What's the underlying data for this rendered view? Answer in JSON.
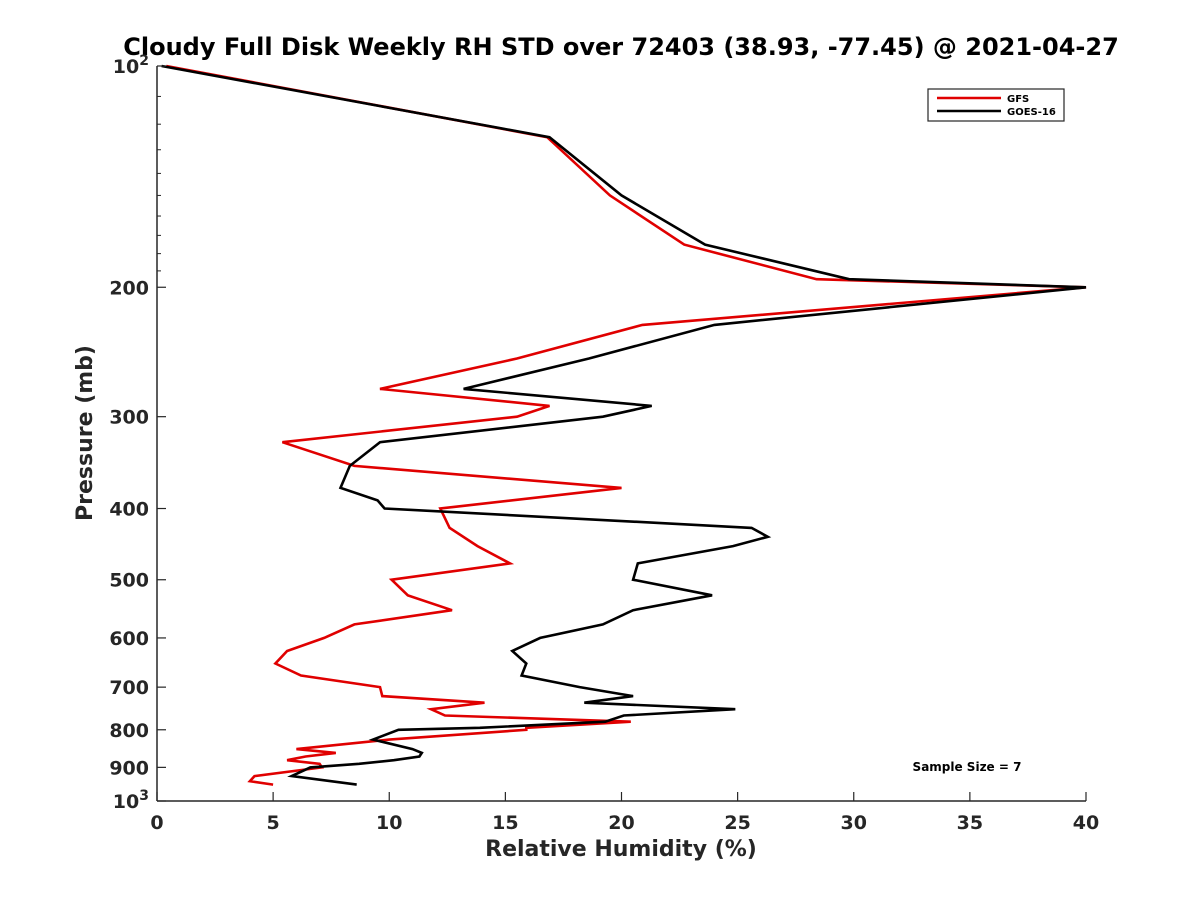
{
  "chart_data": {
    "type": "line",
    "title": "Cloudy Full Disk Weekly RH STD over 72403 (38.93, -77.45) @ 2021-04-27",
    "xlabel": "Relative Humidity (%)",
    "ylabel": "Pressure (mb)",
    "xlim": [
      0,
      40
    ],
    "ylim": [
      1000,
      100
    ],
    "yscale": "log",
    "y_reversed": true,
    "grid": false,
    "legend_position": "top-right",
    "x_ticks": [
      "0",
      "5",
      "10",
      "15",
      "20",
      "25",
      "30",
      "35",
      "40"
    ],
    "y_ticks": [
      {
        "value": 100,
        "label": "10",
        "sup": "2"
      },
      {
        "value": 200,
        "label": "200",
        "sup": ""
      },
      {
        "value": 300,
        "label": "300",
        "sup": ""
      },
      {
        "value": 400,
        "label": "400",
        "sup": ""
      },
      {
        "value": 500,
        "label": "500",
        "sup": ""
      },
      {
        "value": 600,
        "label": "600",
        "sup": ""
      },
      {
        "value": 700,
        "label": "700",
        "sup": ""
      },
      {
        "value": 800,
        "label": "800",
        "sup": ""
      },
      {
        "value": 900,
        "label": "900",
        "sup": ""
      },
      {
        "value": 1000,
        "label": "10",
        "sup": "3"
      }
    ],
    "series": [
      {
        "name": "GFS",
        "color": "#e00000",
        "points": [
          [
            0.4,
            100
          ],
          [
            16.8,
            125
          ],
          [
            19.5,
            150
          ],
          [
            22.7,
            175
          ],
          [
            28.4,
            195
          ],
          [
            40,
            200
          ],
          [
            20.9,
            225
          ],
          [
            15.5,
            250
          ],
          [
            9.6,
            275
          ],
          [
            16.9,
            290
          ],
          [
            15.5,
            300
          ],
          [
            5.4,
            325
          ],
          [
            8.5,
            350
          ],
          [
            20.0,
            375
          ],
          [
            12.2,
            400
          ],
          [
            12.6,
            425
          ],
          [
            13.8,
            450
          ],
          [
            15.2,
            475
          ],
          [
            10.1,
            500
          ],
          [
            10.8,
            525
          ],
          [
            12.7,
            550
          ],
          [
            8.5,
            575
          ],
          [
            7.2,
            600
          ],
          [
            5.6,
            625
          ],
          [
            5.1,
            650
          ],
          [
            6.2,
            675
          ],
          [
            9.6,
            700
          ],
          [
            9.7,
            720
          ],
          [
            14.1,
            735
          ],
          [
            11.8,
            750
          ],
          [
            12.4,
            765
          ],
          [
            20.4,
            780
          ],
          [
            15.9,
            795
          ],
          [
            15.9,
            800
          ],
          [
            10.0,
            825
          ],
          [
            6.0,
            850
          ],
          [
            7.7,
            860
          ],
          [
            6.4,
            870
          ],
          [
            5.6,
            880
          ],
          [
            7.0,
            890
          ],
          [
            7.1,
            900
          ],
          [
            4.2,
            925
          ],
          [
            4.0,
            940
          ],
          [
            5.0,
            950
          ]
        ]
      },
      {
        "name": "GOES-16",
        "color": "#000000",
        "points": [
          [
            0.2,
            100
          ],
          [
            16.9,
            125
          ],
          [
            20.0,
            150
          ],
          [
            23.6,
            175
          ],
          [
            29.8,
            195
          ],
          [
            40,
            200
          ],
          [
            24.0,
            225
          ],
          [
            18.6,
            250
          ],
          [
            13.2,
            275
          ],
          [
            21.3,
            290
          ],
          [
            19.2,
            300
          ],
          [
            9.6,
            325
          ],
          [
            8.3,
            350
          ],
          [
            7.9,
            375
          ],
          [
            9.5,
            390
          ],
          [
            9.8,
            400
          ],
          [
            25.6,
            425
          ],
          [
            26.3,
            437
          ],
          [
            24.8,
            450
          ],
          [
            20.7,
            475
          ],
          [
            20.5,
            500
          ],
          [
            23.9,
            525
          ],
          [
            20.5,
            550
          ],
          [
            19.2,
            575
          ],
          [
            16.5,
            600
          ],
          [
            15.3,
            625
          ],
          [
            15.9,
            650
          ],
          [
            15.7,
            675
          ],
          [
            18.2,
            700
          ],
          [
            20.5,
            720
          ],
          [
            18.4,
            735
          ],
          [
            24.9,
            750
          ],
          [
            20.1,
            765
          ],
          [
            19.3,
            780
          ],
          [
            13.9,
            795
          ],
          [
            10.4,
            800
          ],
          [
            9.3,
            825
          ],
          [
            11.0,
            850
          ],
          [
            11.4,
            860
          ],
          [
            11.3,
            870
          ],
          [
            10.2,
            880
          ],
          [
            8.7,
            890
          ],
          [
            6.6,
            900
          ],
          [
            5.8,
            925
          ],
          [
            8.6,
            950
          ]
        ]
      }
    ],
    "annotation": "Sample Size = 7"
  }
}
